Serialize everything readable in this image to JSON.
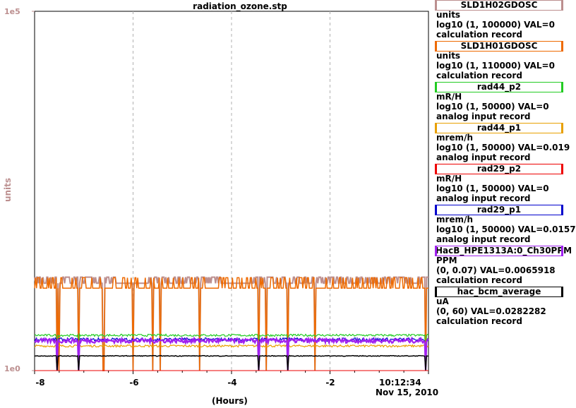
{
  "title": "radiation_ozone.stp",
  "chart_data": {
    "type": "line",
    "ylabel": "units",
    "yscale": "log",
    "ylim": [
      1,
      100000
    ],
    "ytick_labels": [
      "1e5",
      "1e0"
    ],
    "xlabel": "(Hours)",
    "xlim": [
      -8,
      0
    ],
    "xtick_labels": [
      "-8",
      "-6",
      "-4",
      "-2"
    ],
    "end_time": "10:12:34",
    "end_date": "Nov 15, 2010",
    "grid": true,
    "series": [
      {
        "name": "SLD1H02GDOSC",
        "color": "#bc8f8f",
        "units": "units",
        "range": "log10 (1, 100000) VAL=0",
        "record": "calculation record",
        "y_high": 20,
        "y_low": 1
      },
      {
        "name": "SLD1H01GDOSC",
        "color": "#ee6a00",
        "units": "units",
        "range": "log10 (1, 110000) VAL=0",
        "record": "calculation record",
        "y_high": 14,
        "y_low": 1
      },
      {
        "name": "rad44_p2",
        "color": "#22cc22",
        "units": "mR/H",
        "range": "log10 (1, 50000) VAL=0",
        "record": "analog input record",
        "y_level": 3.1
      },
      {
        "name": "rad44_p1",
        "color": "#e8a000",
        "units": "mrem/h",
        "range": "log10 (1, 50000) VAL=0.019",
        "record": "analog input record",
        "y_level": 2.2
      },
      {
        "name": "rad29_p2",
        "color": "#ee0000",
        "units": "mR/H",
        "range": "log10 (1, 50000) VAL=0",
        "record": "analog input record",
        "y_level": 1
      },
      {
        "name": "rad29_p1",
        "color": "#0000cc",
        "units": "mrem/h",
        "range": "log10 (1, 50000) VAL=0.0157",
        "record": "analog input record",
        "y_level": 2.7
      },
      {
        "name": "HacB_HPE1313A:0_Ch30PPM",
        "color": "#a020f0",
        "units": "PPM",
        "range": "(0, 0.07) VAL=0.0065918",
        "record": "calculation record",
        "y_level": 2.6
      },
      {
        "name": "hac_bcm_average",
        "color": "#000000",
        "units": "uA",
        "range": "(0, 60) VAL=0.0282282",
        "record": "calculation record",
        "y_level": 1.6
      }
    ]
  }
}
